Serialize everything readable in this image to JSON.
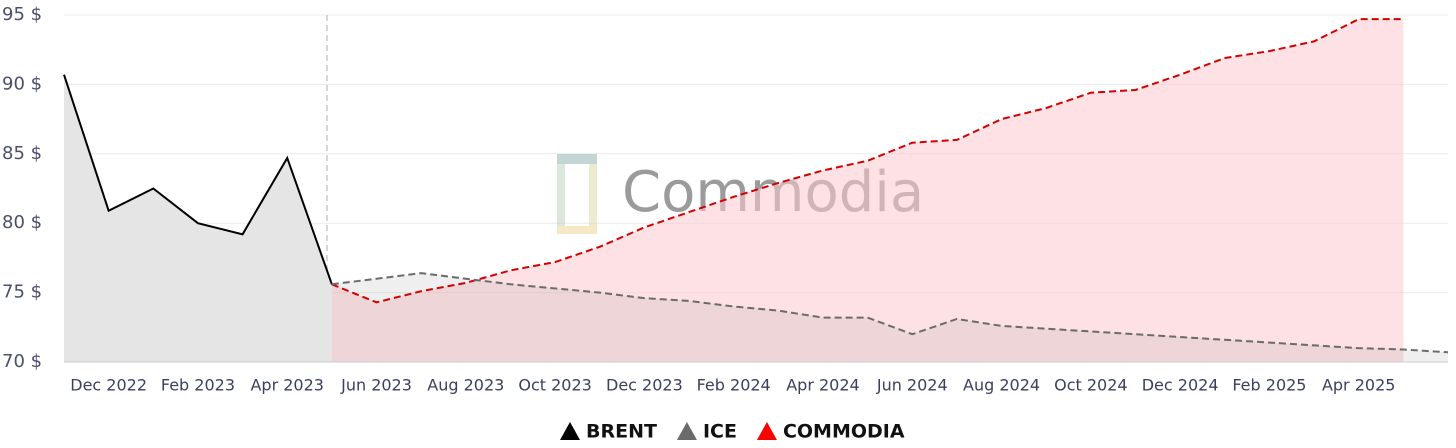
{
  "chart_data": {
    "type": "line",
    "watermark": "Commodia",
    "categories": [
      null,
      "Dec 2022",
      null,
      "Feb 2023",
      null,
      "Apr 2023",
      null,
      "Jun 2023",
      null,
      "Aug 2023",
      null,
      "Oct 2023",
      null,
      "Dec 2023",
      null,
      "Feb 2024",
      null,
      "Apr 2024",
      null,
      "Jun 2024",
      null,
      "Aug 2024",
      null,
      "Oct 2024",
      null,
      "Dec 2024",
      null,
      "Feb 2025",
      null,
      "Apr 2025",
      null,
      null
    ],
    "series": [
      {
        "name": "BRENT",
        "color": "#000000",
        "dashed": false,
        "fill": "#e5e5e5",
        "values": [
          90.7,
          80.9,
          82.5,
          80.0,
          79.2,
          84.7,
          75.6,
          null,
          null,
          null,
          null,
          null,
          null,
          null,
          null,
          null,
          null,
          null,
          null,
          null,
          null,
          null,
          null,
          null,
          null,
          null,
          null,
          null,
          null,
          null,
          null,
          null
        ]
      },
      {
        "name": "ICE",
        "color": "#6b6b6b",
        "dashed": true,
        "fill": "rgba(150,150,150,0.15)",
        "values": [
          null,
          null,
          null,
          null,
          null,
          null,
          75.6,
          76.0,
          76.4,
          76.0,
          75.6,
          75.3,
          75.0,
          74.6,
          74.4,
          74.0,
          73.7,
          73.2,
          73.2,
          72.0,
          73.1,
          72.6,
          72.4,
          72.2,
          72.0,
          71.8,
          71.6,
          71.4,
          71.2,
          71.0,
          70.9,
          70.7
        ]
      },
      {
        "name": "COMMODIA",
        "color": "#d40000",
        "dashed": true,
        "fill": "rgba(252,200,206,0.55)",
        "values": [
          null,
          null,
          null,
          null,
          null,
          null,
          75.6,
          74.3,
          75.1,
          75.7,
          76.6,
          77.2,
          78.3,
          79.7,
          80.8,
          81.9,
          82.9,
          83.8,
          84.5,
          85.8,
          86.0,
          87.5,
          88.3,
          89.4,
          89.6,
          90.7,
          91.9,
          92.4,
          93.1,
          94.7,
          94.7,
          null
        ]
      }
    ],
    "ylim": [
      70,
      95
    ],
    "yticks": [
      {
        "value": 70,
        "label": "70 $"
      },
      {
        "value": 75,
        "label": "75 $"
      },
      {
        "value": 80,
        "label": "80 $"
      },
      {
        "value": 85,
        "label": "85 $"
      },
      {
        "value": 90,
        "label": "90 $"
      },
      {
        "value": 95,
        "label": "95 $"
      }
    ],
    "grid": true
  }
}
